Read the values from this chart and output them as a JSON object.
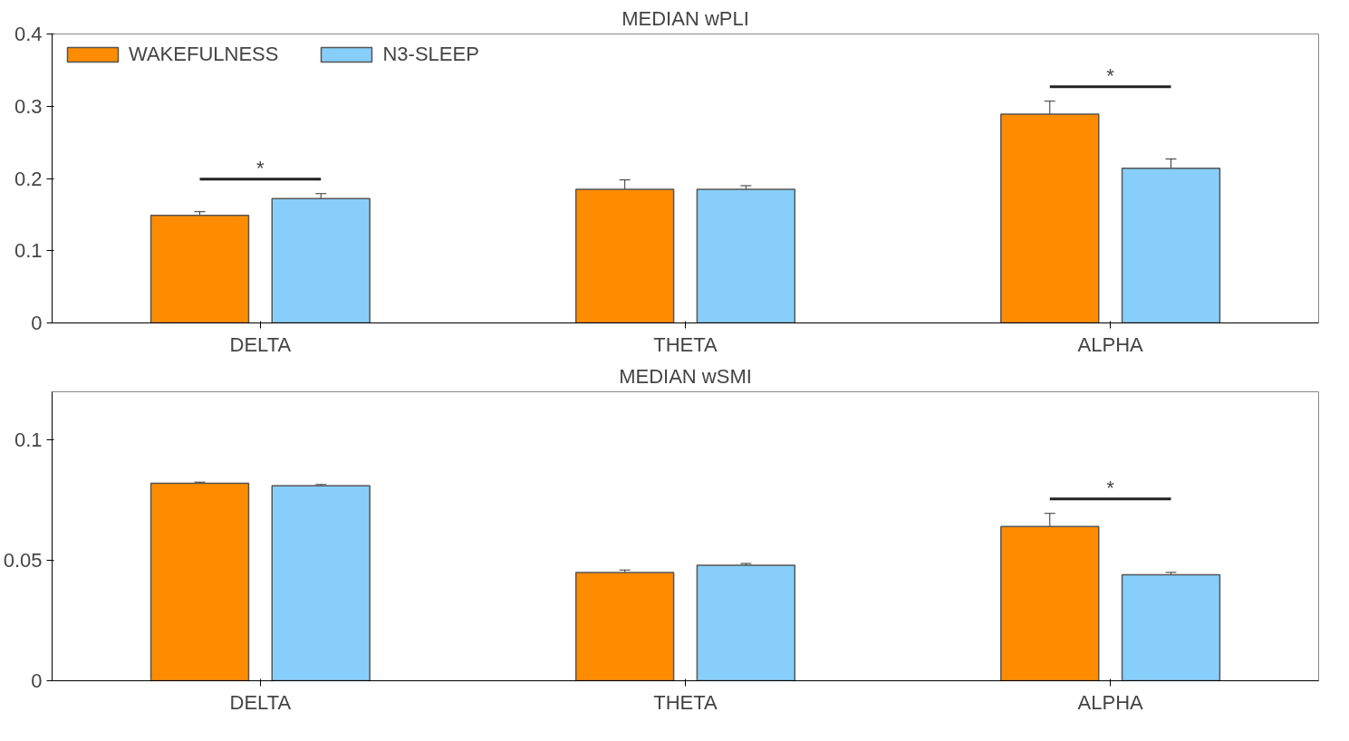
{
  "chart_data": [
    {
      "type": "bar",
      "title": "MEDIAN wPLI",
      "categories": [
        "DELTA",
        "THETA",
        "ALPHA"
      ],
      "series": [
        {
          "name": "WAKEFULNESS",
          "color": "#ff8c00",
          "values": [
            0.149,
            0.185,
            0.289
          ],
          "errors": [
            0.005,
            0.013,
            0.018
          ]
        },
        {
          "name": "N3-SLEEP",
          "color": "#87cefa",
          "values": [
            0.172,
            0.185,
            0.214
          ],
          "errors": [
            0.007,
            0.005,
            0.013
          ]
        }
      ],
      "ylim": [
        0,
        0.4
      ],
      "yticks": [
        0,
        0.1,
        0.2,
        0.3,
        0.4
      ],
      "grid": false,
      "legend": "top left",
      "annotations": [
        "*",
        "*"
      ]
    },
    {
      "type": "bar",
      "title": "MEDIAN wSMI",
      "categories": [
        "DELTA",
        "THETA",
        "ALPHA"
      ],
      "series": [
        {
          "color": "#ff8c00",
          "values": [
            0.082,
            0.045,
            0.064
          ],
          "errors": [
            0.0005,
            0.001,
            0.0055
          ]
        },
        {
          "color": "#87cefa",
          "values": [
            0.081,
            0.048,
            0.044
          ],
          "errors": [
            0.0005,
            0.0007,
            0.001
          ]
        }
      ],
      "ylim": [
        0,
        0.12
      ],
      "yticks": [
        0,
        0.05,
        0.1
      ],
      "grid": false,
      "annotations": [
        "*"
      ]
    }
  ]
}
